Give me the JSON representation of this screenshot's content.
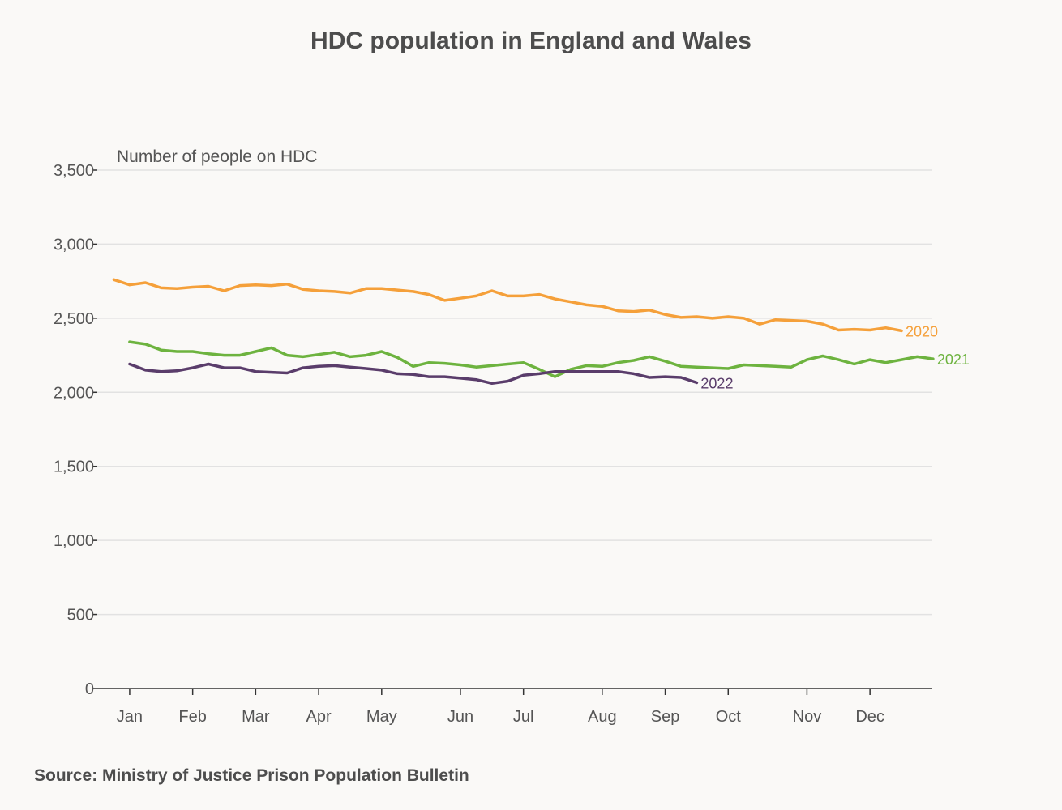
{
  "chart_data": {
    "type": "line",
    "title": "HDC population in England and Wales",
    "ylabel": "Number of people on HDC",
    "xlabel": "",
    "ylim": [
      0,
      3500
    ],
    "yticks": [
      0,
      500,
      1000,
      1500,
      2000,
      2500,
      3000,
      3500
    ],
    "ytick_labels": [
      "0",
      "500",
      "1,000",
      "1,500",
      "2,000",
      "2,500",
      "3,000",
      "3,500"
    ],
    "x_unit": "week of year",
    "xlim": [
      0,
      53
    ],
    "month_ticks": [
      {
        "label": "Jan",
        "week": 1
      },
      {
        "label": "Feb",
        "week": 5
      },
      {
        "label": "Mar",
        "week": 9
      },
      {
        "label": "Apr",
        "week": 13
      },
      {
        "label": "May",
        "week": 17
      },
      {
        "label": "Jun",
        "week": 22
      },
      {
        "label": "Jul",
        "week": 26
      },
      {
        "label": "Aug",
        "week": 31
      },
      {
        "label": "Sep",
        "week": 35
      },
      {
        "label": "Oct",
        "week": 39
      },
      {
        "label": "Nov",
        "week": 44
      },
      {
        "label": "Dec",
        "week": 48
      }
    ],
    "grid": true,
    "series": [
      {
        "name": "2020",
        "color": "#f5a03a",
        "start_week": 0,
        "values": [
          2760,
          2725,
          2740,
          2705,
          2700,
          2710,
          2715,
          2685,
          2720,
          2725,
          2720,
          2730,
          2695,
          2685,
          2680,
          2670,
          2700,
          2700,
          2690,
          2680,
          2660,
          2620,
          2635,
          2650,
          2685,
          2650,
          2650,
          2660,
          2630,
          2610,
          2590,
          2580,
          2550,
          2545,
          2555,
          2525,
          2505,
          2510,
          2500,
          2510,
          2500,
          2460,
          2490,
          2485,
          2480,
          2460,
          2420,
          2425,
          2420,
          2435,
          2415
        ]
      },
      {
        "name": "2021",
        "color": "#6db33f",
        "start_week": 1,
        "values": [
          2340,
          2325,
          2285,
          2275,
          2275,
          2260,
          2250,
          2250,
          2275,
          2300,
          2250,
          2240,
          2255,
          2270,
          2240,
          2250,
          2275,
          2235,
          2175,
          2200,
          2195,
          2185,
          2170,
          2180,
          2190,
          2200,
          2155,
          2105,
          2155,
          2180,
          2175,
          2200,
          2215,
          2240,
          2210,
          2175,
          2170,
          2165,
          2160,
          2185,
          2180,
          2175,
          2170,
          2220,
          2245,
          2220,
          2190,
          2220,
          2200,
          2220,
          2240,
          2225
        ]
      },
      {
        "name": "2022",
        "color": "#5a3d6b",
        "start_week": 1,
        "values": [
          2190,
          2150,
          2140,
          2145,
          2165,
          2190,
          2165,
          2165,
          2140,
          2135,
          2130,
          2165,
          2175,
          2180,
          2170,
          2160,
          2150,
          2125,
          2120,
          2105,
          2105,
          2095,
          2085,
          2060,
          2075,
          2115,
          2125,
          2140,
          2140,
          2140,
          2140,
          2140,
          2125,
          2100,
          2105,
          2100,
          2065
        ]
      }
    ]
  },
  "source": "Source: Ministry of Justice Prison Population Bulletin"
}
